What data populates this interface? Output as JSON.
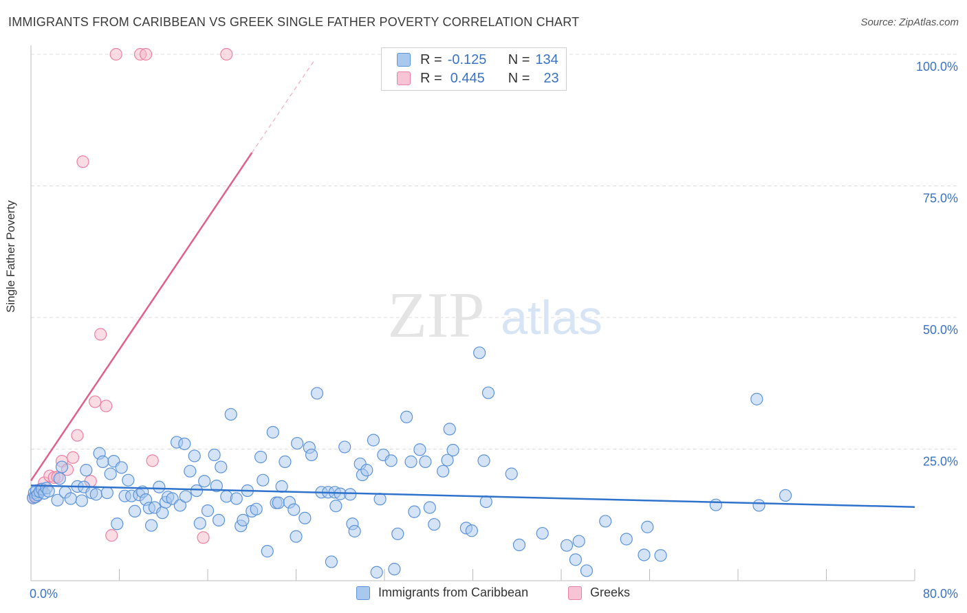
{
  "title": "IMMIGRANTS FROM CARIBBEAN VS GREEK SINGLE FATHER POVERTY CORRELATION CHART",
  "source": "Source: ZipAtlas.com",
  "watermark": {
    "zip": "ZIP",
    "atlas": "atlas"
  },
  "legend_top": {
    "rows": [
      {
        "r_label": "R =",
        "r_value": "-0.125",
        "n_label": "N =",
        "n_value": "134"
      },
      {
        "r_label": "R =",
        "r_value": "0.445",
        "n_label": "N =",
        "n_value": "23"
      }
    ]
  },
  "colors": {
    "blue_fill": "#a9c8ee",
    "blue_stroke": "#5b93d9",
    "blue_line": "#2f72cc",
    "pink_fill": "#f6b9cc",
    "pink_stroke": "#ec7fa2",
    "pink_line": "#e0608c",
    "tick_label": "#3a72c4",
    "grid": "#dddddd"
  },
  "chart_data": {
    "type": "scatter",
    "title": "IMMIGRANTS FROM CARIBBEAN VS GREEK SINGLE FATHER POVERTY CORRELATION CHART",
    "xlabel": "",
    "ylabel": "Single Father Poverty",
    "xlim": [
      0,
      80
    ],
    "ylim": [
      0,
      100
    ],
    "x_tick_labels": [
      "0.0%",
      "80.0%"
    ],
    "y_tick_labels": [
      "25.0%",
      "50.0%",
      "75.0%",
      "100.0%"
    ],
    "y_ticks": [
      25,
      50,
      75,
      100
    ],
    "grid": true,
    "legend_position": "bottom",
    "series": [
      {
        "name": "Immigrants from Caribbean",
        "color": "blue",
        "r": -0.125,
        "n": 134,
        "trend": {
          "x0": 0,
          "y0": 18.1,
          "x1": 80,
          "y1": 14.0
        },
        "points": [
          [
            0.2,
            15.7
          ],
          [
            0.3,
            16.7
          ],
          [
            0.4,
            15.9
          ],
          [
            0.5,
            17.1
          ],
          [
            0.6,
            16.3
          ],
          [
            0.8,
            16.9
          ],
          [
            1.0,
            17.4
          ],
          [
            1.2,
            16.6
          ],
          [
            1.4,
            17.6
          ],
          [
            1.6,
            17.0
          ],
          [
            2.4,
            15.3
          ],
          [
            2.6,
            19.4
          ],
          [
            2.8,
            21.6
          ],
          [
            3.1,
            16.8
          ],
          [
            3.6,
            15.6
          ],
          [
            4.2,
            17.9
          ],
          [
            4.8,
            17.8
          ],
          [
            4.6,
            15.2
          ],
          [
            5.0,
            21.0
          ],
          [
            5.5,
            16.7
          ],
          [
            5.9,
            16.4
          ],
          [
            6.2,
            24.2
          ],
          [
            6.5,
            22.6
          ],
          [
            6.9,
            16.7
          ],
          [
            7.2,
            20.3
          ],
          [
            7.5,
            22.7
          ],
          [
            7.8,
            10.8
          ],
          [
            8.2,
            21.5
          ],
          [
            8.5,
            16.1
          ],
          [
            8.8,
            19.1
          ],
          [
            9.1,
            16.1
          ],
          [
            9.4,
            13.2
          ],
          [
            9.8,
            16.3
          ],
          [
            10.1,
            16.9
          ],
          [
            10.4,
            15.4
          ],
          [
            10.7,
            13.8
          ],
          [
            10.9,
            10.5
          ],
          [
            11.2,
            13.9
          ],
          [
            11.6,
            17.8
          ],
          [
            11.9,
            12.9
          ],
          [
            12.2,
            14.9
          ],
          [
            12.4,
            15.9
          ],
          [
            12.8,
            15.6
          ],
          [
            13.2,
            26.3
          ],
          [
            13.5,
            14.3
          ],
          [
            13.9,
            26.0
          ],
          [
            14.0,
            16.0
          ],
          [
            14.4,
            20.8
          ],
          [
            14.8,
            23.7
          ],
          [
            15.0,
            17.1
          ],
          [
            15.3,
            10.9
          ],
          [
            15.7,
            18.9
          ],
          [
            16.0,
            13.3
          ],
          [
            16.6,
            23.9
          ],
          [
            16.8,
            18.0
          ],
          [
            17.0,
            11.5
          ],
          [
            17.2,
            21.6
          ],
          [
            17.7,
            16.0
          ],
          [
            18.1,
            31.6
          ],
          [
            18.6,
            15.6
          ],
          [
            19.0,
            10.4
          ],
          [
            19.2,
            11.5
          ],
          [
            19.6,
            17.1
          ],
          [
            20.0,
            13.2
          ],
          [
            20.4,
            13.6
          ],
          [
            20.8,
            23.5
          ],
          [
            21.0,
            19.1
          ],
          [
            21.4,
            5.6
          ],
          [
            21.9,
            28.2
          ],
          [
            22.2,
            14.8
          ],
          [
            22.4,
            14.8
          ],
          [
            22.7,
            17.9
          ],
          [
            23.0,
            22.6
          ],
          [
            23.4,
            14.9
          ],
          [
            23.8,
            13.5
          ],
          [
            24.0,
            8.4
          ],
          [
            24.1,
            26.1
          ],
          [
            24.8,
            11.9
          ],
          [
            25.2,
            25.3
          ],
          [
            25.4,
            23.9
          ],
          [
            25.9,
            35.6
          ],
          [
            26.3,
            16.8
          ],
          [
            26.9,
            16.8
          ],
          [
            27.2,
            3.6
          ],
          [
            27.5,
            16.8
          ],
          [
            27.6,
            14.2
          ],
          [
            28.0,
            16.5
          ],
          [
            28.4,
            25.4
          ],
          [
            28.9,
            16.4
          ],
          [
            29.1,
            10.8
          ],
          [
            29.3,
            9.4
          ],
          [
            29.8,
            22.2
          ],
          [
            30.0,
            20.1
          ],
          [
            30.4,
            21.0
          ],
          [
            31.0,
            26.7
          ],
          [
            31.3,
            1.6
          ],
          [
            31.6,
            15.5
          ],
          [
            31.9,
            23.9
          ],
          [
            32.6,
            22.8
          ],
          [
            32.9,
            2.2
          ],
          [
            33.2,
            8.9
          ],
          [
            34.0,
            31.1
          ],
          [
            34.4,
            22.6
          ],
          [
            34.7,
            13.1
          ],
          [
            35.2,
            24.9
          ],
          [
            35.7,
            22.6
          ],
          [
            36.1,
            13.9
          ],
          [
            36.5,
            10.7
          ],
          [
            37.3,
            20.8
          ],
          [
            37.7,
            22.9
          ],
          [
            37.9,
            28.8
          ],
          [
            38.2,
            24.8
          ],
          [
            39.4,
            10.0
          ],
          [
            39.9,
            9.5
          ],
          [
            40.6,
            43.3
          ],
          [
            41.0,
            22.8
          ],
          [
            41.2,
            15.0
          ],
          [
            41.4,
            35.7
          ],
          [
            43.5,
            20.3
          ],
          [
            44.2,
            6.8
          ],
          [
            46.3,
            9.0
          ],
          [
            48.5,
            6.7
          ],
          [
            49.3,
            4.0
          ],
          [
            49.6,
            7.5
          ],
          [
            50.3,
            1.9
          ],
          [
            52.0,
            11.3
          ],
          [
            53.9,
            7.9
          ],
          [
            55.5,
            4.9
          ],
          [
            55.8,
            10.2
          ],
          [
            57.0,
            4.8
          ],
          [
            62.0,
            14.4
          ],
          [
            65.7,
            34.5
          ],
          [
            65.9,
            14.3
          ],
          [
            68.3,
            16.2
          ]
        ]
      },
      {
        "name": "Greeks",
        "color": "pink",
        "r": 0.445,
        "n": 23,
        "trend": {
          "x0": 0,
          "y0": 19.0,
          "x1": 20.0,
          "y1": 81.3
        },
        "trend_dashed_to": {
          "x": 25.7,
          "y": 99.0
        },
        "points": [
          [
            0.2,
            15.8
          ],
          [
            0.5,
            16.0
          ],
          [
            0.9,
            17.4
          ],
          [
            1.2,
            18.6
          ],
          [
            1.7,
            19.9
          ],
          [
            2.1,
            19.6
          ],
          [
            2.4,
            19.7
          ],
          [
            2.8,
            22.7
          ],
          [
            3.3,
            21.1
          ],
          [
            3.8,
            23.4
          ],
          [
            4.2,
            27.6
          ],
          [
            4.7,
            79.6
          ],
          [
            5.4,
            18.9
          ],
          [
            5.8,
            34.0
          ],
          [
            6.3,
            46.8
          ],
          [
            6.8,
            33.2
          ],
          [
            7.3,
            8.6
          ],
          [
            7.7,
            100.0
          ],
          [
            9.9,
            100.0
          ],
          [
            10.4,
            100.0
          ],
          [
            11.0,
            22.8
          ],
          [
            15.6,
            8.2
          ],
          [
            17.7,
            100.0
          ]
        ]
      }
    ]
  },
  "bottom_legend": {
    "items": [
      {
        "label": "Immigrants from Caribbean",
        "color": "blue"
      },
      {
        "label": "Greeks",
        "color": "pink"
      }
    ]
  }
}
